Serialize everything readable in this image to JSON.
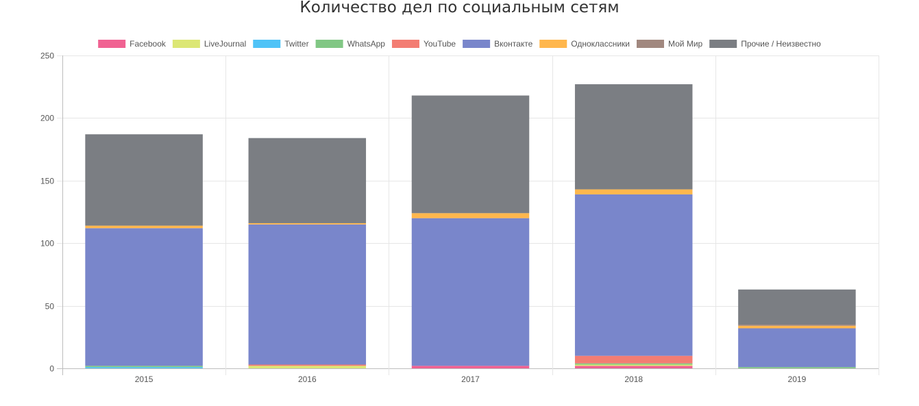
{
  "chart_data": {
    "type": "bar",
    "stacked": true,
    "title": "Количество дел по социальным сетям",
    "xlabel": "",
    "ylabel": "",
    "ylim": [
      0,
      250
    ],
    "yticks": [
      0,
      50,
      100,
      150,
      200,
      250
    ],
    "grid": true,
    "legend_position": "top",
    "categories": [
      "2015",
      "2016",
      "2017",
      "2018",
      "2019"
    ],
    "series": [
      {
        "name": "Facebook",
        "color": "#f06292",
        "values": [
          0,
          0,
          2,
          2,
          0
        ]
      },
      {
        "name": "LiveJournal",
        "color": "#dce775",
        "values": [
          0,
          2,
          0,
          1,
          0
        ]
      },
      {
        "name": "Twitter",
        "color": "#4fc3f7",
        "values": [
          1,
          0,
          0,
          0,
          0
        ]
      },
      {
        "name": "WhatsApp",
        "color": "#81c784",
        "values": [
          1,
          0,
          0,
          1,
          1
        ]
      },
      {
        "name": "YouTube",
        "color": "#f37d73",
        "values": [
          0,
          1,
          0,
          6,
          0
        ]
      },
      {
        "name": "Вконтакте",
        "color": "#7986cb",
        "values": [
          110,
          112,
          118,
          129,
          31
        ]
      },
      {
        "name": "Одноклассники",
        "color": "#ffb74d",
        "values": [
          2,
          1,
          4,
          4,
          2
        ]
      },
      {
        "name": "Мой Мир",
        "color": "#a1887f",
        "values": [
          0,
          0,
          0,
          0,
          1
        ]
      },
      {
        "name": "Прочие / Неизвестно",
        "color": "#7b7e83",
        "values": [
          73,
          68,
          94,
          84,
          28
        ]
      }
    ]
  }
}
